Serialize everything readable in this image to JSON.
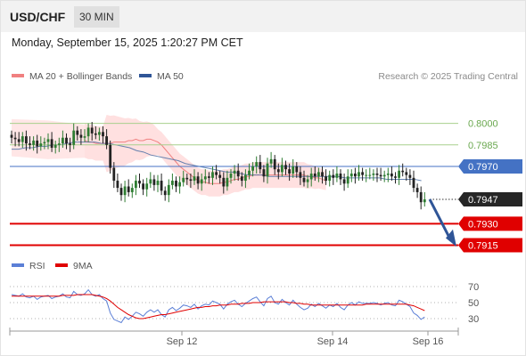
{
  "header": {
    "symbol": "USD/CHF",
    "timeframe": "30 MIN"
  },
  "timestamp": "Monday, September 15, 2025 1:20:27 PM CET",
  "legend": {
    "ma20_label": "MA 20 + Bollinger Bands",
    "ma50_label": "MA 50",
    "rsi_label": "RSI",
    "rsi_ma_label": "9MA"
  },
  "research_credit": "Research © 2025 Trading Central",
  "colors": {
    "candle_up": "#2e7d32",
    "candle_down": "#222222",
    "ma20": "#f08080",
    "bands": "#ffd6d6",
    "ma50": "#4a6fa5",
    "pivot": "#4472c4",
    "target": "#e00000",
    "resistance": "#a8d08d",
    "arrow": "#2f5597",
    "rsi": "#5b7fd6",
    "rsi_ma": "#e00000"
  },
  "chart_data": [
    {
      "type": "candlestick",
      "title": "USD/CHF",
      "price_range": [
        0.7906,
        0.8024
      ],
      "x_ticks": [
        "Sep 12",
        "Sep 14",
        "Sep 16"
      ],
      "levels": [
        {
          "value": 0.8,
          "label": "0.8000",
          "kind": "resistance"
        },
        {
          "value": 0.7985,
          "label": "0.7985",
          "kind": "resistance"
        },
        {
          "value": 0.797,
          "label": "0.7970",
          "kind": "pivot"
        },
        {
          "value": 0.7947,
          "label": "0.7947",
          "kind": "last_price"
        },
        {
          "value": 0.793,
          "label": "0.7930",
          "kind": "target"
        },
        {
          "value": 0.7915,
          "label": "0.7915",
          "kind": "target"
        }
      ],
      "close": [
        0.799,
        0.7989,
        0.7987,
        0.7991,
        0.7986,
        0.7985,
        0.7988,
        0.7984,
        0.7986,
        0.7987,
        0.7989,
        0.7983,
        0.7985,
        0.7986,
        0.799,
        0.7986,
        0.7985,
        0.7995,
        0.7992,
        0.799,
        0.7991,
        0.7997,
        0.7993,
        0.7992,
        0.7994,
        0.7991,
        0.7985,
        0.7969,
        0.796,
        0.7955,
        0.795,
        0.7956,
        0.7952,
        0.7955,
        0.796,
        0.7958,
        0.7954,
        0.7958,
        0.7961,
        0.7957,
        0.796,
        0.7953,
        0.795,
        0.7957,
        0.796,
        0.7956,
        0.7959,
        0.7962,
        0.7961,
        0.796,
        0.7963,
        0.7958,
        0.7961,
        0.7963,
        0.7962,
        0.7966,
        0.7964,
        0.7962,
        0.7956,
        0.7962,
        0.7965,
        0.7967,
        0.7963,
        0.796,
        0.7964,
        0.7967,
        0.797,
        0.7973,
        0.7968,
        0.7963,
        0.7972,
        0.7975,
        0.7968,
        0.7966,
        0.7971,
        0.7968,
        0.7965,
        0.797,
        0.7966,
        0.7962,
        0.7959,
        0.7961,
        0.7965,
        0.7963,
        0.7966,
        0.7963,
        0.796,
        0.7964,
        0.7962,
        0.7965,
        0.7961,
        0.7958,
        0.7963,
        0.7965,
        0.7963,
        0.7966,
        0.7964,
        0.7964,
        0.7964,
        0.7965,
        0.7964,
        0.7963,
        0.7964,
        0.7965,
        0.7963,
        0.7962,
        0.7967,
        0.7966,
        0.7964,
        0.7962,
        0.7955,
        0.7952,
        0.7945,
        0.7947
      ],
      "ma20": [
        0.7988,
        0.7987,
        0.7987,
        0.7986,
        0.7986,
        0.7986,
        0.7986,
        0.7986,
        0.7987,
        0.7987,
        0.7987,
        0.7987,
        0.7988,
        0.7988,
        0.7989,
        0.7988,
        0.7988,
        0.7989,
        0.7989,
        0.7988,
        0.7987,
        0.7985,
        0.7982,
        0.7979,
        0.7976,
        0.7973,
        0.797,
        0.7968,
        0.7966,
        0.7964,
        0.7962,
        0.796,
        0.7959,
        0.7959,
        0.7958,
        0.7958,
        0.7958,
        0.7958,
        0.7959,
        0.7959,
        0.796,
        0.7961,
        0.7961,
        0.7962,
        0.7963,
        0.7963,
        0.7964,
        0.7964,
        0.7964,
        0.7964,
        0.7964,
        0.7964,
        0.7964,
        0.7964,
        0.7964,
        0.7964,
        0.7964,
        0.7964,
        0.7964,
        0.7964,
        0.7964,
        0.7963,
        0.7963,
        0.7962,
        0.7962,
        0.7961,
        0.796
      ],
      "ma50": [
        0.7982,
        0.7982,
        0.7983,
        0.7983,
        0.7984,
        0.7984,
        0.7985,
        0.7985,
        0.7986,
        0.7987,
        0.7987,
        0.7987,
        0.7987,
        0.7986,
        0.7986,
        0.7985,
        0.7984,
        0.7983,
        0.7981,
        0.798,
        0.7978,
        0.7977,
        0.7976,
        0.7975,
        0.7974,
        0.7972,
        0.7971,
        0.797,
        0.7969,
        0.7968,
        0.7967,
        0.7966,
        0.7966,
        0.7965,
        0.7964,
        0.7964,
        0.7964,
        0.7963,
        0.7963,
        0.7963,
        0.7963,
        0.7963,
        0.7963,
        0.7963,
        0.7963,
        0.7963,
        0.7963,
        0.7963,
        0.7962,
        0.7962,
        0.7962,
        0.7962,
        0.7962,
        0.7962,
        0.7961,
        0.7961,
        0.7961,
        0.7961,
        0.7961,
        0.796
      ]
    },
    {
      "type": "line",
      "title": "RSI",
      "y_ticks": [
        70,
        50,
        30
      ],
      "ylim": [
        20,
        80
      ],
      "series": [
        {
          "name": "RSI",
          "values": [
            60,
            59,
            58,
            61,
            57,
            56,
            58,
            54,
            57,
            58,
            59,
            55,
            57,
            58,
            61,
            57,
            56,
            64,
            60,
            59,
            61,
            66,
            60,
            58,
            60,
            55,
            52,
            37,
            29,
            27,
            25,
            32,
            29,
            33,
            38,
            36,
            33,
            38,
            41,
            38,
            41,
            35,
            32,
            41,
            44,
            40,
            43,
            47,
            46,
            44,
            48,
            42,
            46,
            48,
            47,
            52,
            50,
            48,
            42,
            48,
            51,
            53,
            48,
            45,
            49,
            52,
            55,
            57,
            51,
            46,
            55,
            58,
            50,
            48,
            54,
            50,
            47,
            53,
            48,
            44,
            41,
            43,
            48,
            45,
            49,
            46,
            43,
            47,
            45,
            49,
            44,
            41,
            47,
            50,
            47,
            51,
            49,
            49,
            49,
            50,
            49,
            47,
            49,
            50,
            47,
            46,
            53,
            51,
            48,
            45,
            37,
            34,
            29,
            32
          ]
        },
        {
          "name": "9MA",
          "values": [
            58,
            58,
            58,
            58,
            58,
            58,
            58,
            58,
            58,
            58,
            58,
            58,
            58,
            58,
            59,
            59,
            59,
            59,
            60,
            60,
            60,
            60,
            60,
            59,
            58,
            57,
            55,
            52,
            48,
            44,
            41,
            38,
            35,
            33,
            31,
            30,
            30,
            31,
            32,
            33,
            34,
            35,
            35,
            36,
            37,
            38,
            39,
            40,
            41,
            42,
            43,
            44,
            44,
            45,
            45,
            46,
            46,
            47,
            47,
            47,
            48,
            48,
            48,
            49,
            49,
            49,
            50,
            50,
            50,
            51,
            51,
            51,
            51,
            51,
            51,
            51,
            50,
            50,
            49,
            49,
            48,
            48,
            47,
            47,
            47,
            47,
            47,
            47,
            47,
            47,
            47,
            47,
            47,
            47,
            47,
            47,
            47,
            48,
            48,
            48,
            48,
            48,
            48,
            48,
            48,
            48,
            48,
            48,
            48,
            47,
            46,
            44,
            42,
            40
          ]
        }
      ]
    }
  ]
}
